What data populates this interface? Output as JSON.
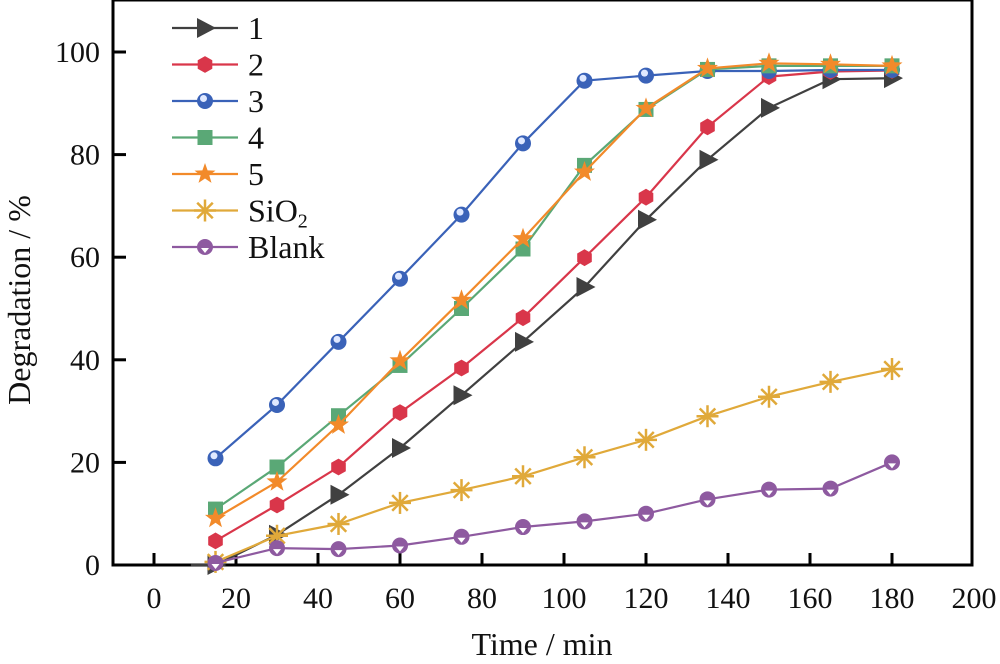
{
  "chart_data": {
    "type": "line",
    "title": "",
    "xlabel": "Time / min",
    "ylabel": "Degradation / %",
    "xlim": [
      -10,
      200
    ],
    "ylim": [
      0,
      110
    ],
    "xticks": [
      0,
      20,
      40,
      60,
      80,
      100,
      120,
      140,
      160,
      180,
      200
    ],
    "yticks": [
      0,
      20,
      40,
      60,
      80,
      100
    ],
    "grid": false,
    "legend_position": "top-left",
    "x": [
      15,
      30,
      45,
      60,
      75,
      90,
      105,
      120,
      135,
      150,
      165,
      180
    ],
    "series": [
      {
        "name": "1",
        "name_sub": "",
        "marker": "triangle-right",
        "color": "#404040",
        "values": [
          0,
          5.9,
          13.7,
          22.8,
          33.1,
          43.5,
          54.2,
          67.3,
          79.0,
          89.1,
          94.7,
          94.9
        ]
      },
      {
        "name": "2",
        "name_sub": "",
        "marker": "hexagon",
        "color": "#d9364a",
        "values": [
          4.7,
          11.7,
          19.1,
          29.7,
          38.4,
          48.2,
          59.9,
          71.7,
          85.4,
          95.2,
          96.2,
          96.4
        ]
      },
      {
        "name": "3",
        "name_sub": "",
        "marker": "sphere",
        "color": "#3a62b8",
        "values": [
          20.8,
          31.2,
          43.5,
          55.8,
          68.3,
          82.2,
          94.4,
          95.4,
          96.3,
          96.3,
          96.5,
          96.5
        ]
      },
      {
        "name": "4",
        "name_sub": "",
        "marker": "square",
        "color": "#5aa876",
        "values": [
          10.9,
          19.1,
          29.1,
          38.9,
          50.0,
          61.6,
          77.9,
          88.8,
          96.6,
          97.3,
          97.3,
          97.3
        ]
      },
      {
        "name": "5",
        "name_sub": "",
        "marker": "star",
        "color": "#f28a2a",
        "values": [
          9.1,
          16.2,
          27.3,
          39.8,
          51.6,
          63.6,
          76.6,
          89.0,
          96.8,
          97.8,
          97.6,
          97.3
        ]
      },
      {
        "name": "SiO",
        "name_sub": "2",
        "marker": "asterisk",
        "color": "#e0a93a",
        "values": [
          0.6,
          5.7,
          8.0,
          12.1,
          14.6,
          17.3,
          21.0,
          24.4,
          29.0,
          32.8,
          35.7,
          38.2
        ]
      },
      {
        "name": "Blank",
        "name_sub": "",
        "marker": "circle-down",
        "color": "#8e5aa0",
        "values": [
          0.4,
          3.3,
          3.1,
          3.8,
          5.5,
          7.4,
          8.5,
          10.0,
          12.8,
          14.7,
          14.9,
          20.0
        ]
      }
    ]
  }
}
